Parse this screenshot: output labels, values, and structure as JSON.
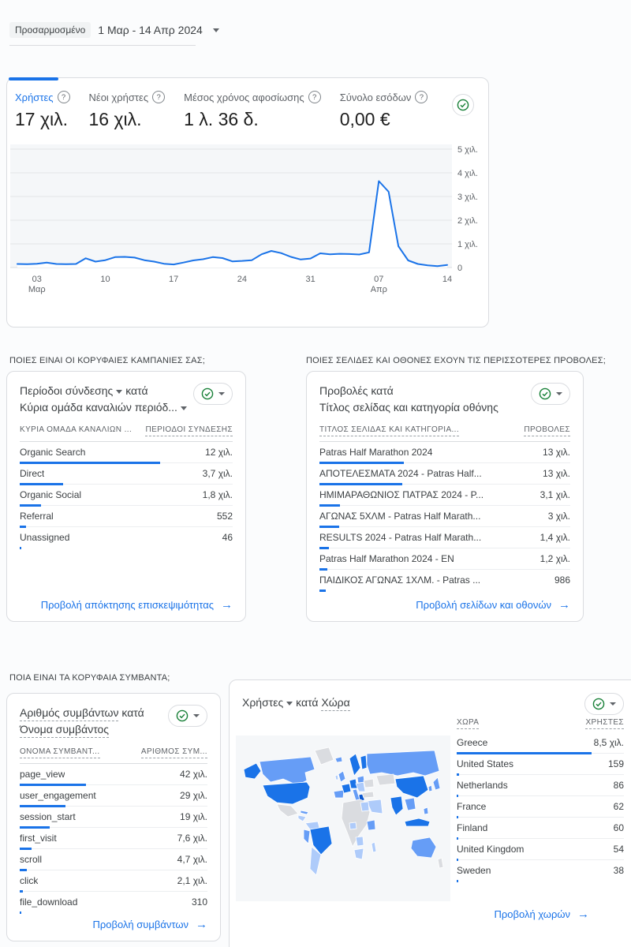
{
  "icons": {
    "help": "?",
    "arrow": "→"
  },
  "date_bar": {
    "chip": "Προσαρμοσμένο",
    "range": "1 Μαρ - 14 Απρ 2024"
  },
  "metrics": [
    {
      "label": "Χρήστες",
      "value": "17 χιλ."
    },
    {
      "label": "Νέοι χρήστες",
      "value": "16 χιλ."
    },
    {
      "label": "Μέσος χρόνος αφοσίωσης",
      "value": "1 λ. 36 δ."
    },
    {
      "label": "Σύνολο εσόδων",
      "value": "0,00 €"
    }
  ],
  "chart_data": {
    "type": "line",
    "date_start": "1 Μαρ 2024",
    "date_end": "14 Απρ 2024",
    "series": [
      {
        "name": "Χρήστες",
        "values": [
          150,
          140,
          160,
          210,
          150,
          140,
          150,
          390,
          250,
          310,
          440,
          450,
          420,
          310,
          250,
          160,
          130,
          210,
          300,
          350,
          440,
          400,
          260,
          280,
          310,
          560,
          700,
          610,
          450,
          340,
          380,
          600,
          560,
          580,
          570,
          550,
          640,
          3650,
          3200,
          900,
          300,
          150,
          90,
          60,
          110
        ]
      }
    ],
    "x_ticks": [
      {
        "day": 2,
        "label": "03",
        "sub": "Μαρ"
      },
      {
        "day": 9,
        "label": "10"
      },
      {
        "day": 16,
        "label": "17"
      },
      {
        "day": 23,
        "label": "24"
      },
      {
        "day": 30,
        "label": "31"
      },
      {
        "day": 37,
        "label": "07",
        "sub": "Απρ"
      },
      {
        "day": 44,
        "label": "14"
      }
    ],
    "y_ticks": [
      {
        "value": 5000,
        "label": "5 χιλ."
      },
      {
        "value": 4000,
        "label": "4 χιλ."
      },
      {
        "value": 3000,
        "label": "3 χιλ."
      },
      {
        "value": 2000,
        "label": "2 χιλ."
      },
      {
        "value": 1000,
        "label": "1 χιλ."
      },
      {
        "value": 0,
        "label": "0"
      }
    ],
    "ylim": [
      0,
      5000
    ],
    "grid": true,
    "legend": "none",
    "line_color": "#1a73e8"
  },
  "sections": {
    "campaigns_title": "ΠΟΙΕΣ ΕΙΝΑΙ ΟΙ ΚΟΡΥΦΑΙΕΣ ΚΑΜΠΑΝΙΕΣ ΣΑΣ;",
    "pages_title": "ΠΟΙΕΣ ΣΕΛΙΔΕΣ ΚΑΙ ΟΘΟΝΕΣ ΕΧΟΥΝ ΤΙΣ ΠΕΡΙΣΣΟΤΕΡΕΣ ΠΡΟΒΟΛΕΣ;",
    "events_title": "ΠΟΙΑ ΕΙΝΑΙ ΤΑ ΚΟΡΥΦΑΙΑ ΣΥΜΒΑΝΤΑ;"
  },
  "campaigns": {
    "metric": "Περίοδοι σύνδεσης",
    "join": "κατά",
    "dimension": "Κύρια ομάδα καναλιών περιόδ...",
    "col_dim": "ΚΥΡΙΑ ΟΜΑΔΑ ΚΑΝΑΛΙΩΝ ...",
    "col_val": "ΠΕΡΙΟΔΟΙ ΣΥΝΔΕΣΗΣ",
    "rows": [
      {
        "name": "Organic Search",
        "display": "12 χιλ.",
        "value": 12000
      },
      {
        "name": "Direct",
        "display": "3,7 χιλ.",
        "value": 3700
      },
      {
        "name": "Organic Social",
        "display": "1,8 χιλ.",
        "value": 1800
      },
      {
        "name": "Referral",
        "display": "552",
        "value": 552
      },
      {
        "name": "Unassigned",
        "display": "46",
        "value": 46
      }
    ],
    "footer": "Προβολή απόκτησης επισκεψιμότητας"
  },
  "pages": {
    "metric": "Προβολές",
    "join": "κατά",
    "dimension": "Τίτλος σελίδας και κατηγορία οθόνης",
    "col_dim": "ΤΙΤΛΟΣ ΣΕΛΙΔΑΣ ΚΑΙ ΚΑΤΗΓΟΡΙΑ...",
    "col_val": "ΠΡΟΒΟΛΕΣ",
    "rows": [
      {
        "name": "Patras Half Marathon 2024",
        "display": "13 χιλ.",
        "value": 13000
      },
      {
        "name": "ΑΠΟΤΕΛΕΣΜΑΤΑ 2024 - Patras Half...",
        "display": "13 χιλ.",
        "value": 12800
      },
      {
        "name": "ΗΜΙΜΑΡΑΘΩΝΙΟΣ ΠΑΤΡΑΣ 2024 - P...",
        "display": "3,1 χιλ.",
        "value": 3100
      },
      {
        "name": "ΑΓΩΝΑΣ 5ΧΛΜ - Patras Half Marath...",
        "display": "3 χιλ.",
        "value": 3000
      },
      {
        "name": "RESULTS 2024 - Patras Half Marath...",
        "display": "1,4 χιλ.",
        "value": 1400
      },
      {
        "name": "Patras Half Marathon 2024 - EN",
        "display": "1,2 χιλ.",
        "value": 1200
      },
      {
        "name": "ΠΑΙΔΙΚΟΣ ΑΓΩΝΑΣ 1ΧΛΜ. - Patras ...",
        "display": "986",
        "value": 986
      }
    ],
    "footer": "Προβολή σελίδων και οθονών"
  },
  "events": {
    "metric": "Αριθμός συμβάντων",
    "join": "κατά",
    "dimension": "Όνομα συμβάντος",
    "col_dim": "ΟΝΟΜΑ ΣΥΜΒΑΝΤ...",
    "col_val": "ΑΡΙΘΜΟΣ ΣΥΜ...",
    "rows": [
      {
        "name": "page_view",
        "display": "42 χιλ.",
        "value": 42000
      },
      {
        "name": "user_engagement",
        "display": "29 χιλ.",
        "value": 29000
      },
      {
        "name": "session_start",
        "display": "19 χιλ.",
        "value": 19000
      },
      {
        "name": "first_visit",
        "display": "7,6 χιλ.",
        "value": 7600
      },
      {
        "name": "scroll",
        "display": "4,7 χιλ.",
        "value": 4700
      },
      {
        "name": "click",
        "display": "2,1 χιλ.",
        "value": 2100
      },
      {
        "name": "file_download",
        "display": "310",
        "value": 310
      }
    ],
    "footer": "Προβολή συμβάντων"
  },
  "countries": {
    "metric": "Χρήστες",
    "join": "κατά",
    "dimension": "Χώρα",
    "col_dim": "ΧΩΡΑ",
    "col_val": "ΧΡΗΣΤΕΣ",
    "rows": [
      {
        "name": "Greece",
        "display": "8,5 χιλ.",
        "value": 8500
      },
      {
        "name": "United States",
        "display": "159",
        "value": 159
      },
      {
        "name": "Netherlands",
        "display": "86",
        "value": 86
      },
      {
        "name": "France",
        "display": "62",
        "value": 62
      },
      {
        "name": "Finland",
        "display": "60",
        "value": 60
      },
      {
        "name": "United Kingdom",
        "display": "54",
        "value": 54
      },
      {
        "name": "Sweden",
        "display": "38",
        "value": 38
      }
    ],
    "footer": "Προβολή χωρών"
  },
  "map_colors": {
    "ocean": "#f5f7f9",
    "none": "#dadce0",
    "low": "#aecbfa",
    "med": "#669df6",
    "high": "#1a73e8",
    "highest": "#0b57d0"
  }
}
